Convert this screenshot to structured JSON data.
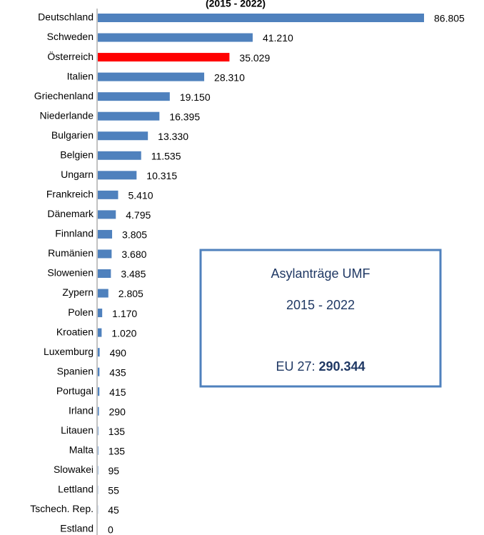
{
  "chart_data": {
    "type": "barh",
    "title": "(2015 - 2022)",
    "categories": [
      "Deutschland",
      "Schweden",
      "Österreich",
      "Italien",
      "Griechenland",
      "Niederlande",
      "Bulgarien",
      "Belgien",
      "Ungarn",
      "Frankreich",
      "Dänemark",
      "Finnland",
      "Rumänien",
      "Slowenien",
      "Zypern",
      "Polen",
      "Kroatien",
      "Luxemburg",
      "Spanien",
      "Portugal",
      "Irland",
      "Litauen",
      "Malta",
      "Slowakei",
      "Lettland",
      "Tschech. Rep.",
      "Estland"
    ],
    "values": [
      86805,
      41210,
      35029,
      28310,
      19150,
      16395,
      13330,
      11535,
      10315,
      5410,
      4795,
      3805,
      3680,
      3485,
      2805,
      1170,
      1020,
      490,
      435,
      415,
      290,
      135,
      135,
      95,
      55,
      45,
      0
    ],
    "value_labels": [
      "86.805",
      "41.210",
      "35.029",
      "28.310",
      "19.150",
      "16.395",
      "13.330",
      "11.535",
      "10.315",
      "5.410",
      "4.795",
      "3.805",
      "3.680",
      "3.485",
      "2.805",
      "1.170",
      "1.020",
      "490",
      "435",
      "415",
      "290",
      "135",
      "135",
      "95",
      "55",
      "45",
      "0"
    ],
    "colors": [
      "#4f81bd",
      "#4f81bd",
      "#ff0000",
      "#4f81bd",
      "#4f81bd",
      "#4f81bd",
      "#4f81bd",
      "#4f81bd",
      "#4f81bd",
      "#4f81bd",
      "#4f81bd",
      "#4f81bd",
      "#4f81bd",
      "#4f81bd",
      "#4f81bd",
      "#4f81bd",
      "#4f81bd",
      "#4f81bd",
      "#4f81bd",
      "#4f81bd",
      "#4f81bd",
      "#4f81bd",
      "#4f81bd",
      "#4f81bd",
      "#4f81bd",
      "#4f81bd",
      "#4f81bd"
    ],
    "annotation": {
      "line1": "Asylanträge UMF",
      "line2": "2015 - 2022",
      "total_label": "EU 27: ",
      "total": "290.344"
    }
  }
}
